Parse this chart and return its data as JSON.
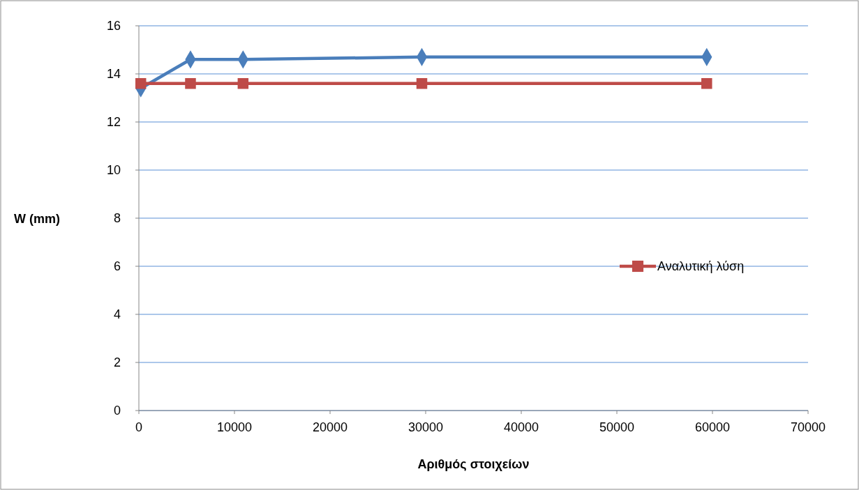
{
  "chart_data": {
    "type": "line",
    "xlabel": "Αριθμός στοιχείων",
    "ylabel": "W (mm)",
    "xlim": [
      0,
      70000
    ],
    "xticks": [
      0,
      10000,
      20000,
      30000,
      40000,
      50000,
      60000,
      70000
    ],
    "ylim": [
      0,
      16
    ],
    "yticks": [
      0,
      2,
      4,
      6,
      8,
      10,
      12,
      14,
      16
    ],
    "grid": "y",
    "legend": "right",
    "series": [
      {
        "color": "#4a7ebb",
        "marker": "diamond",
        "x": [
          200,
          5400,
          10900,
          29600,
          59400
        ],
        "values": [
          13.4,
          14.6,
          14.6,
          14.7,
          14.7
        ]
      },
      {
        "name": "Αναλυτική λύση",
        "color": "#be4b48",
        "marker": "square",
        "x": [
          200,
          5400,
          10900,
          29600,
          59400
        ],
        "values": [
          13.6,
          13.6,
          13.6,
          13.6,
          13.6
        ]
      }
    ]
  }
}
